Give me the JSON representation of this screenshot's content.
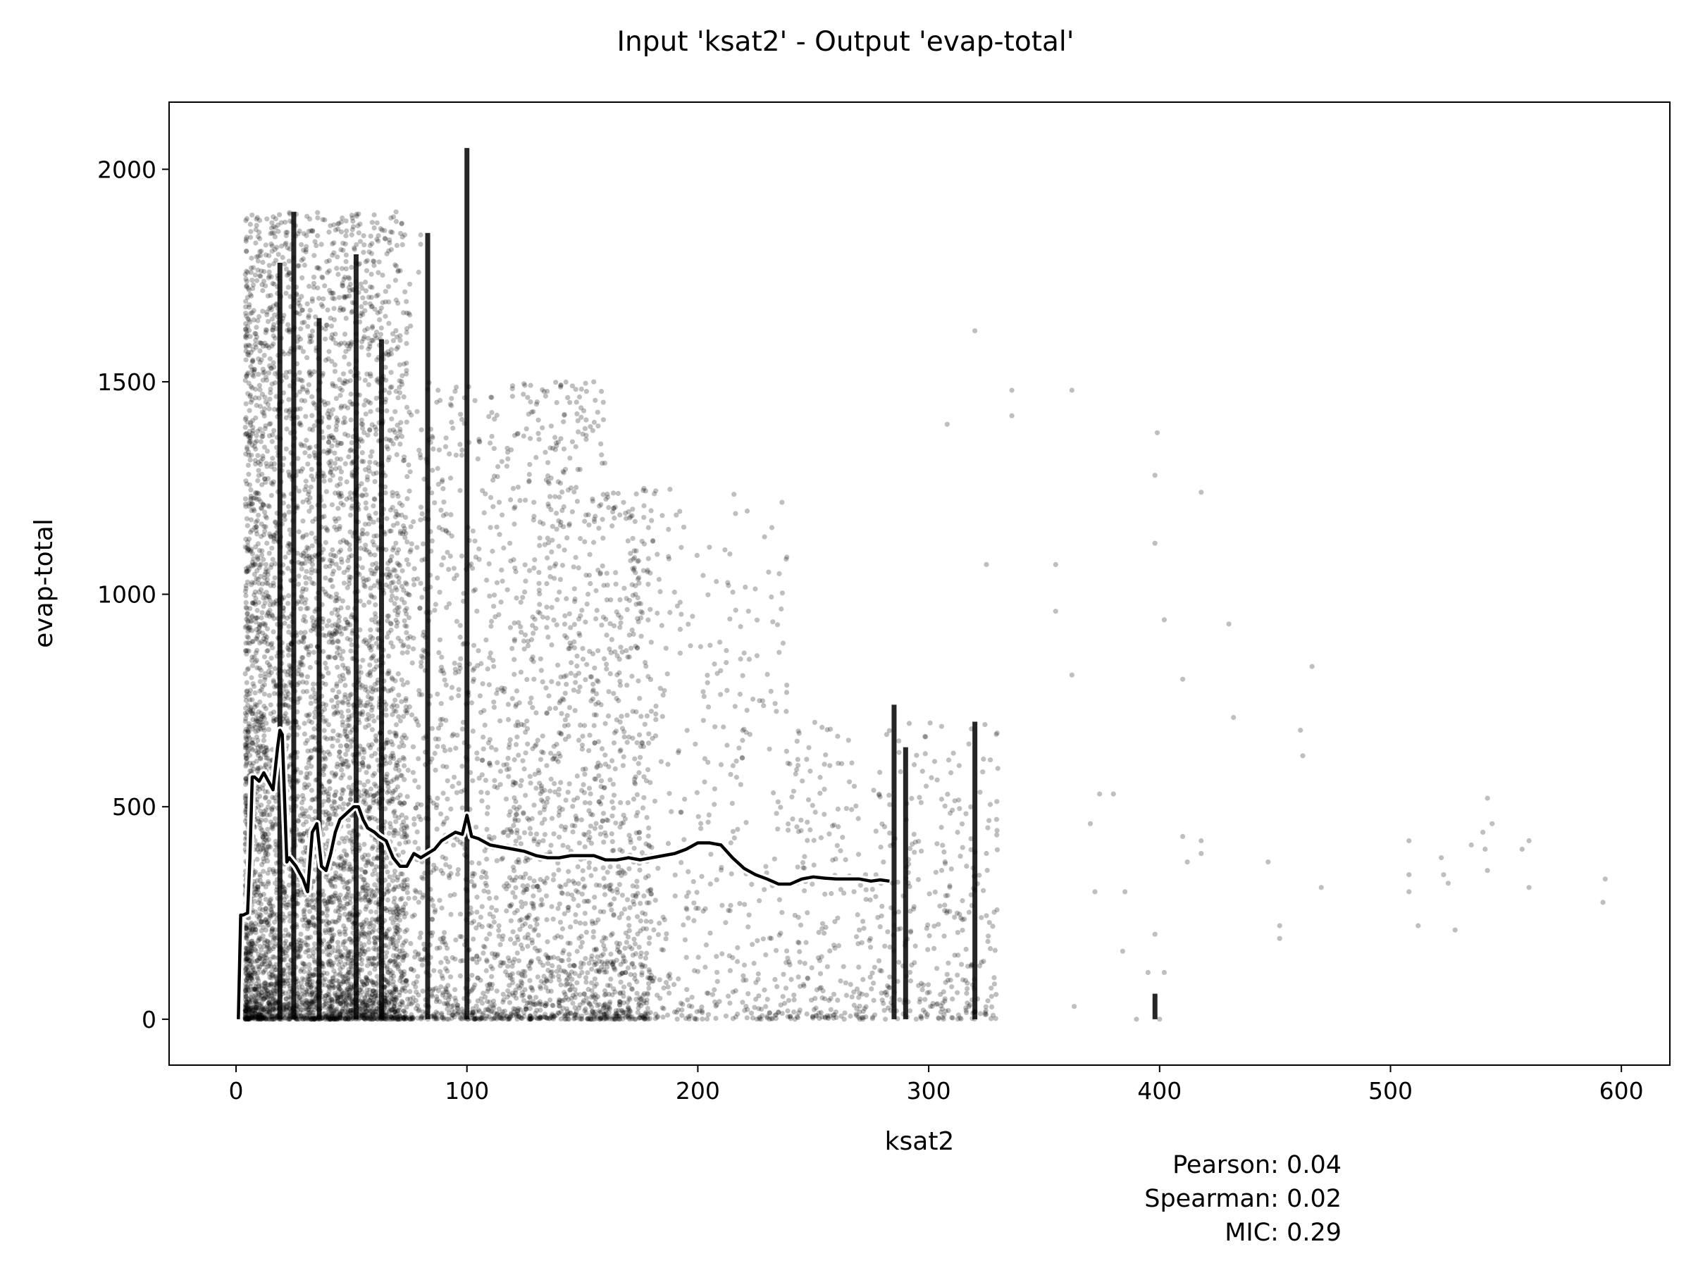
{
  "chart_data": {
    "type": "scatter",
    "title": "Input 'ksat2' - Output 'evap-total'",
    "xlabel": "ksat2",
    "ylabel": "evap-total",
    "xlim": [
      -29,
      621
    ],
    "ylim": [
      -108,
      2158
    ],
    "xticks": [
      0,
      100,
      200,
      300,
      400,
      500,
      600
    ],
    "yticks": [
      0,
      500,
      1000,
      1500,
      2000
    ],
    "grid": false,
    "legend": "none",
    "colors": {
      "points": "#000000",
      "trend_line": "#000000",
      "trend_outline": "#ffffff"
    },
    "point_opacity": 0.25,
    "stats": {
      "pearson": "Pearson: 0.04",
      "spearman": "Spearman: 0.02",
      "mic": "MIC: 0.29"
    },
    "vertical_bands": [
      {
        "x": 100,
        "y_min": 0,
        "y_max": 2050
      },
      {
        "x": 19,
        "y_min": 0,
        "y_max": 1780
      },
      {
        "x": 25,
        "y_min": 0,
        "y_max": 1900
      },
      {
        "x": 36,
        "y_min": 0,
        "y_max": 1650
      },
      {
        "x": 52,
        "y_min": 0,
        "y_max": 1800
      },
      {
        "x": 63,
        "y_min": 0,
        "y_max": 1600
      },
      {
        "x": 83,
        "y_min": 0,
        "y_max": 1850
      },
      {
        "x": 285,
        "y_min": 0,
        "y_max": 740
      },
      {
        "x": 290,
        "y_min": 0,
        "y_max": 640
      },
      {
        "x": 320,
        "y_min": 0,
        "y_max": 700
      },
      {
        "x": 398,
        "y_min": 0,
        "y_max": 60
      }
    ],
    "sparse_points": [
      [
        430,
        930
      ],
      [
        432,
        710
      ],
      [
        410,
        800
      ],
      [
        402,
        940
      ],
      [
        399,
        1380
      ],
      [
        398,
        1280
      ],
      [
        398,
        1120
      ],
      [
        418,
        1240
      ],
      [
        466,
        830
      ],
      [
        461,
        680
      ],
      [
        462,
        620
      ],
      [
        470,
        310
      ],
      [
        447,
        370
      ],
      [
        452,
        220
      ],
      [
        452,
        190
      ],
      [
        508,
        420
      ],
      [
        508,
        340
      ],
      [
        508,
        300
      ],
      [
        512,
        220
      ],
      [
        522,
        380
      ],
      [
        523,
        340
      ],
      [
        525,
        320
      ],
      [
        528,
        210
      ],
      [
        535,
        410
      ],
      [
        540,
        440
      ],
      [
        541,
        400
      ],
      [
        542,
        520
      ],
      [
        542,
        350
      ],
      [
        544,
        460
      ],
      [
        557,
        400
      ],
      [
        560,
        420
      ],
      [
        560,
        310
      ],
      [
        593,
        330
      ],
      [
        592,
        275
      ],
      [
        410,
        430
      ],
      [
        412,
        370
      ],
      [
        418,
        420
      ],
      [
        418,
        390
      ],
      [
        390,
        0
      ],
      [
        400,
        0
      ],
      [
        398,
        200
      ],
      [
        402,
        110
      ],
      [
        355,
        1070
      ],
      [
        362,
        1480
      ],
      [
        336,
        1480
      ],
      [
        336,
        1420
      ],
      [
        320,
        1620
      ],
      [
        308,
        1400
      ],
      [
        325,
        1070
      ],
      [
        355,
        960
      ],
      [
        362,
        810
      ],
      [
        374,
        530
      ],
      [
        380,
        530
      ],
      [
        370,
        460
      ],
      [
        372,
        300
      ],
      [
        385,
        300
      ],
      [
        384,
        160
      ],
      [
        395,
        110
      ],
      [
        363,
        30
      ]
    ],
    "trend_line": {
      "x": [
        1,
        2,
        3,
        5,
        6,
        7,
        8,
        10,
        12,
        14,
        16,
        18,
        19,
        20,
        21,
        22,
        23,
        26,
        29,
        31,
        33,
        35,
        37,
        39,
        41,
        43,
        45,
        47,
        49,
        51,
        53,
        55,
        57,
        60,
        62,
        65,
        68,
        71,
        74,
        77,
        80,
        83,
        86,
        89,
        92,
        95,
        98,
        100,
        102,
        105,
        110,
        115,
        120,
        125,
        130,
        135,
        140,
        145,
        150,
        155,
        160,
        165,
        170,
        175,
        180,
        185,
        190,
        195,
        200,
        205,
        210,
        215,
        220,
        225,
        230,
        235,
        240,
        245,
        250,
        255,
        260,
        265,
        270,
        275,
        279,
        283
      ],
      "y": [
        0,
        245,
        245,
        250,
        380,
        570,
        570,
        560,
        580,
        560,
        540,
        640,
        680,
        670,
        520,
        370,
        380,
        360,
        330,
        300,
        440,
        460,
        360,
        350,
        390,
        440,
        470,
        480,
        490,
        500,
        500,
        470,
        450,
        440,
        430,
        420,
        380,
        360,
        360,
        390,
        380,
        390,
        400,
        420,
        430,
        440,
        435,
        480,
        430,
        425,
        410,
        405,
        400,
        395,
        385,
        380,
        380,
        385,
        385,
        385,
        375,
        375,
        380,
        375,
        380,
        385,
        390,
        400,
        415,
        415,
        410,
        380,
        355,
        340,
        330,
        318,
        318,
        330,
        335,
        332,
        330,
        330,
        330,
        325,
        328,
        325
      ]
    }
  }
}
